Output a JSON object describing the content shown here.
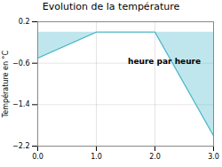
{
  "chart_data": {
    "type": "area",
    "title": "Evolution de la température",
    "xlabel": "heure par heure",
    "ylabel": "Température en °C",
    "x": [
      0,
      1,
      2,
      3
    ],
    "values": [
      -0.5,
      0.0,
      0.0,
      -2.0
    ],
    "color": "#4ab8cc",
    "xlim": [
      0,
      3
    ],
    "ylim": [
      -2.2,
      0.2
    ],
    "xticks": [
      0,
      1,
      2,
      3
    ],
    "yticks": [
      0.2,
      -0.6,
      -1.4,
      -2.2
    ],
    "grid": true
  }
}
